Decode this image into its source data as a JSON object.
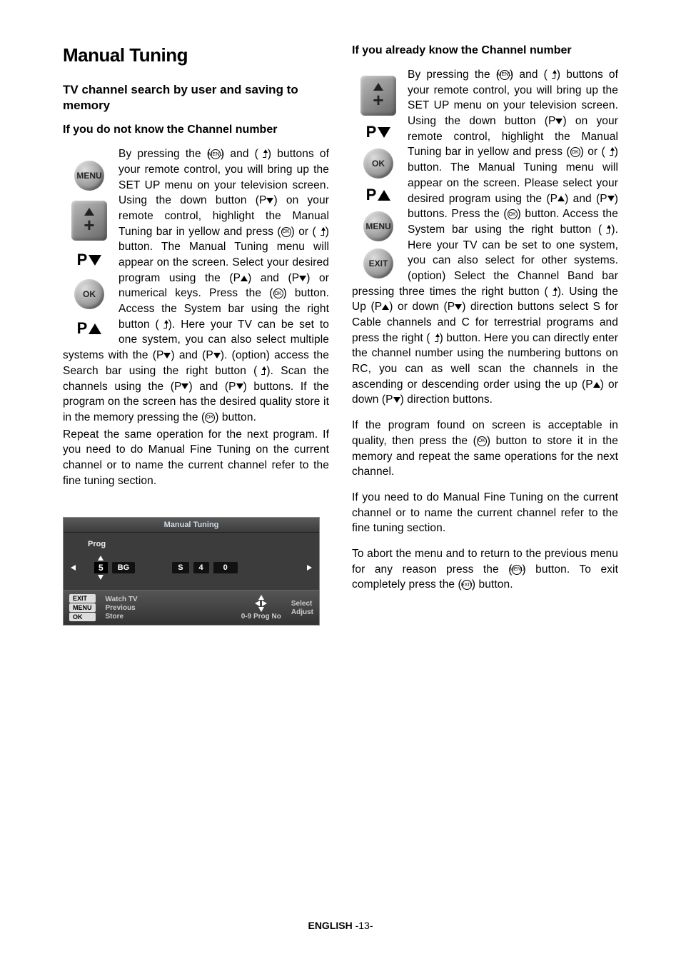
{
  "left": {
    "h1": "Manual Tuning",
    "h2": "TV channel search by user and saving to memory",
    "h3": "If you do not know the Channel number",
    "strip": {
      "menu": "MENU",
      "vol": "+",
      "pv": "P",
      "ok": "OK",
      "pa": "P"
    },
    "wrap_text_html": "By pressing the (<span class='circle-icon'>MENU</span>) and (<span class='arrow-icon right'></span>) buttons of your remote control, you will bring up the SET UP menu on your television screen. Using the down button (P<span class='tri-down-sm'></span>) on your remote control, highlight the Manual Tuning bar in yellow and press (<span class='circle-icon'>OK</span>) or (<span class='arrow-icon right'></span>) button. The Manual Tuning menu will appear on the screen. Select your desired program using the (P<span class='tri-up-sm'></span>) and (P<span class='tri-down-sm'></span>) or numerical keys. Press the (<span class='circle-icon'>OK</span>) button. Access the System bar using the right button (<span class='arrow-icon right'></span>). Here your TV can be set to one system, you can also select multiple systems with the (P<span class='tri-down-sm'></span>) and (P<span class='tri-down-sm'></span>). (option) access the Search bar using the right button (<span class='arrow-icon right'></span>). Scan the channels using the (P<span class='tri-down-sm'></span>) and (P<span class='tri-down-sm'></span>) buttons. If the program on the screen has the desired quality store it in the memory pressing the (<span class='circle-icon'>OK</span>) button.",
    "para2": "Repeat the same operation for the next program. If you need to do Manual Fine Tuning on the current channel or to name the current channel refer to the fine tuning section."
  },
  "right": {
    "h3": "If you already know the Channel number",
    "strip": {
      "vol": "+",
      "pv": "P",
      "ok": "OK",
      "pa": "P",
      "menu": "MENU",
      "exit": "EXIT"
    },
    "wrap_text_html": "By pressing the (<span class='circle-icon'>MENU</span>) and (<span class='arrow-icon right'></span>) buttons of your remote control, you will bring up the SET UP menu on your television screen. Using the down button (P<span class='tri-down-sm'></span>) on your remote control, highlight the Manual Tuning bar in yellow and press (<span class='circle-icon'>OK</span>) or (<span class='arrow-icon right'></span>) button. The Manual Tuning menu will appear on the screen. Please select your desired program using the (P<span class='tri-up-sm'></span>) and (P<span class='tri-down-sm'></span>) buttons. Press the (<span class='circle-icon'>OK</span>) button. Access the System bar using the right button (<span class='arrow-icon right'></span>). Here your TV can be set to one system, you can also select for other systems. (option) Select the Channel Band bar pressing three times the right button (<span class='arrow-icon right'></span>). Using the Up (P<span class='tri-up-sm'></span>) or down (P<span class='tri-down-sm'></span>) direction buttons select S for Cable channels and C for terrestrial programs and press the right (<span class='arrow-icon right'></span>) button. Here you can directly enter the channel number using the numbering buttons on RC, you can as well scan the channels in the ascending or descending order using the up (P<span class='tri-up-sm'></span>) or down (P<span class='tri-down-sm'></span>) direction buttons.",
    "para2_html": "If the program found on screen is acceptable in quality, then press the (<span class='circle-icon'>OK</span>) button to store it in the memory and repeat the same operations for the next channel.",
    "para3": "If you need to do Manual Fine Tuning on the current channel or to name the current channel refer to the fine tuning section.",
    "para4_html": "To abort the menu and to return to the previous menu for any reason press the (<span class='circle-icon'>MENU</span>) button. To exit completely press the (<span class='circle-icon'>EXIT</span>) button."
  },
  "screenshot": {
    "title": "Manual Tuning",
    "prog_label": "Prog",
    "prog_num": "5",
    "bg": "BG",
    "s": "S",
    "four": "4",
    "zero": "0",
    "bottom": {
      "keys": [
        "EXIT",
        "MENU",
        "OK"
      ],
      "labels": [
        "Watch TV",
        "Previous",
        "Store"
      ],
      "select": "Select",
      "adjust": "Adjust",
      "progno": "0-9 Prog No"
    }
  },
  "footer": {
    "lang": "ENGLISH",
    "page": "-13-"
  }
}
